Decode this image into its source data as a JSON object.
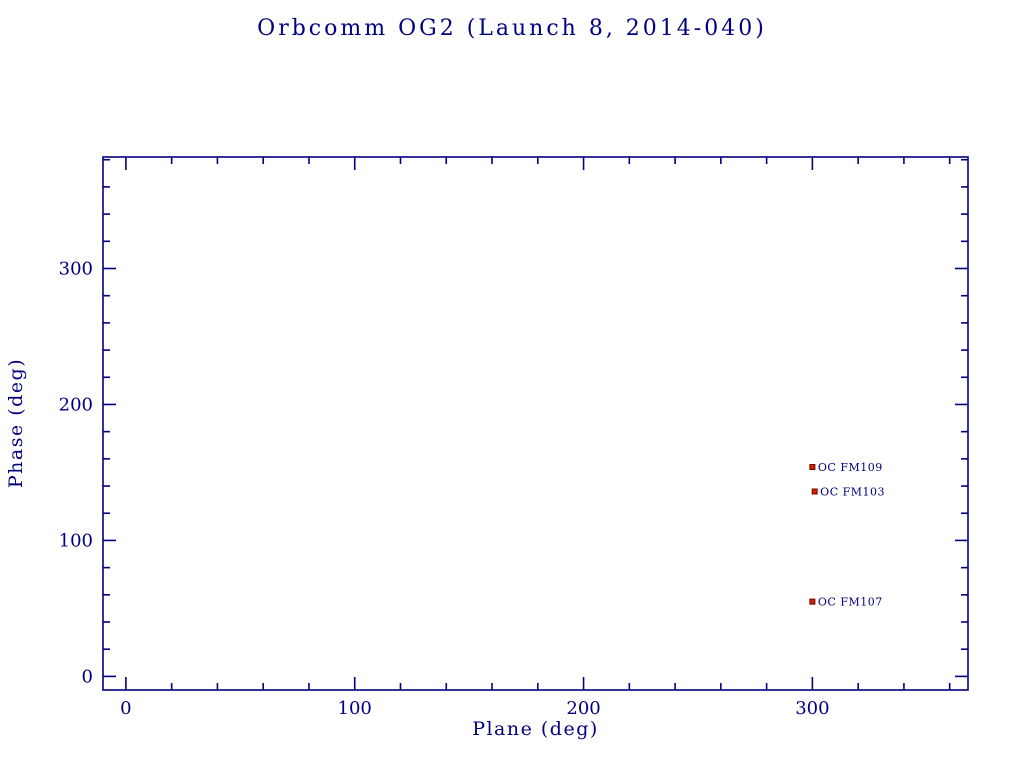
{
  "page": {
    "background": "#ffffff"
  },
  "chart_data": {
    "type": "scatter",
    "title": "Orbcomm OG2 (Launch 8, 2014-040)",
    "xlabel": "Plane (deg)",
    "ylabel": "Phase (deg)",
    "xlim": [
      -10,
      368
    ],
    "ylim": [
      -10,
      382
    ],
    "xticks": [
      0,
      100,
      200,
      300
    ],
    "yticks": [
      0,
      100,
      200,
      300
    ],
    "minor_tick_step": 20,
    "grid": false,
    "legend": "none",
    "axis_color": "#000080",
    "text_color": "#000080",
    "marker_color": "#cc2200",
    "marker_edge_color": "#7a0000",
    "marker_shape": "square",
    "points": [
      {
        "label": "OC FM109",
        "x": 300,
        "y": 154
      },
      {
        "label": "OC FM103",
        "x": 301,
        "y": 136
      },
      {
        "label": "OC FM107",
        "x": 300,
        "y": 55
      }
    ]
  }
}
